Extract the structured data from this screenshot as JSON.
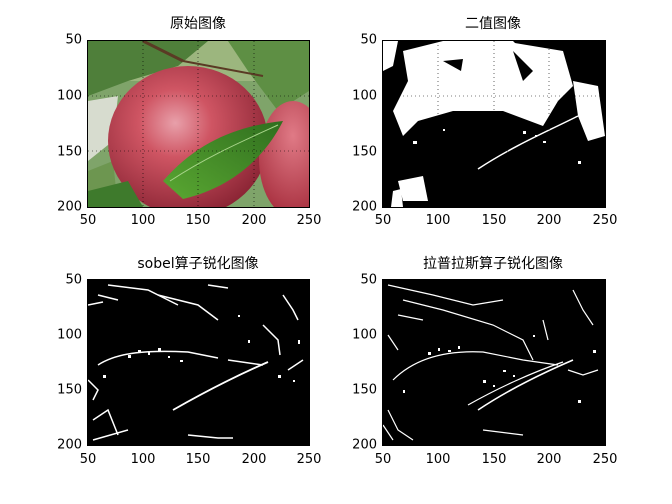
{
  "panels": [
    {
      "title": "原始图像",
      "x_ticks": [
        "50",
        "100",
        "150",
        "200",
        "250"
      ],
      "y_ticks": [
        "50",
        "100",
        "150",
        "200"
      ],
      "image": "color-apple-photo"
    },
    {
      "title": "二值图像",
      "x_ticks": [
        "50",
        "100",
        "150",
        "200",
        "250"
      ],
      "y_ticks": [
        "50",
        "100",
        "150",
        "200"
      ],
      "image": "binary-apple-image"
    },
    {
      "title": "sobel算子锐化图像",
      "x_ticks": [
        "50",
        "100",
        "150",
        "200",
        "250"
      ],
      "y_ticks": [
        "50",
        "100",
        "150",
        "200"
      ],
      "image": "sobel-edge-image"
    },
    {
      "title": "拉普拉斯算子锐化图像",
      "x_ticks": [
        "50",
        "100",
        "150",
        "200",
        "250"
      ],
      "y_ticks": [
        "50",
        "100",
        "150",
        "200"
      ],
      "image": "laplacian-edge-image"
    }
  ],
  "colors": {
    "apple_red": "#c94a5a",
    "leaf_green": "#3f8a2a",
    "background": "#ffffff",
    "ink": "#000000"
  }
}
